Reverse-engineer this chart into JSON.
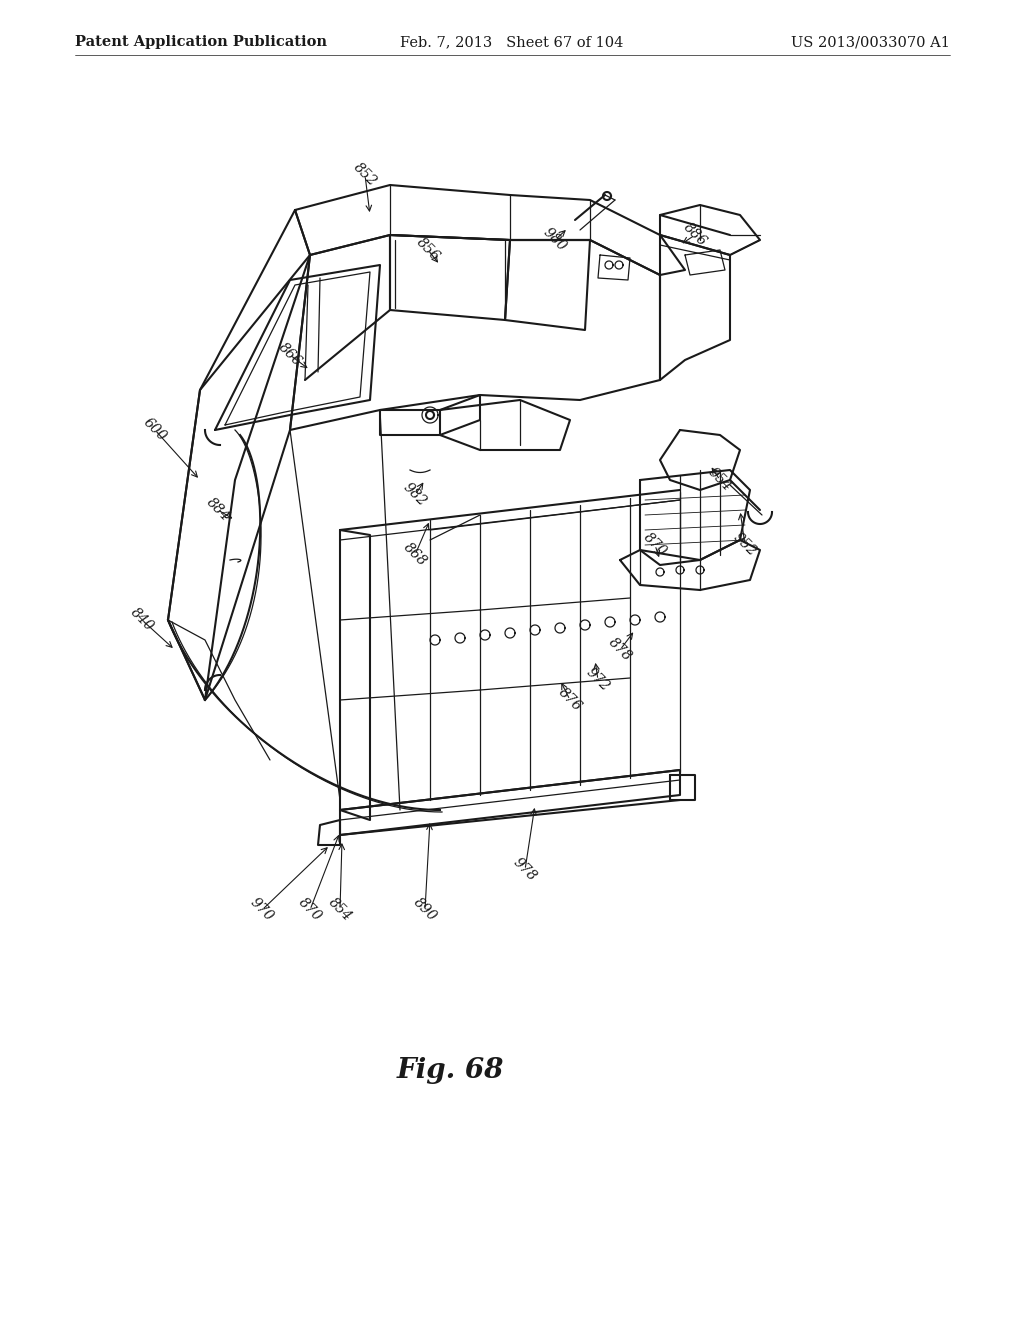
{
  "header_left": "Patent Application Publication",
  "header_mid": "Feb. 7, 2013   Sheet 67 of 104",
  "header_right": "US 2013/0033070 A1",
  "figure_label": "Fig. 68",
  "bg_color": "#ffffff",
  "line_color": "#1a1a1a",
  "label_color": "#1a1a1a",
  "header_fontsize": 10.5,
  "figure_label_fontsize": 20,
  "ref_fontsize": 10
}
